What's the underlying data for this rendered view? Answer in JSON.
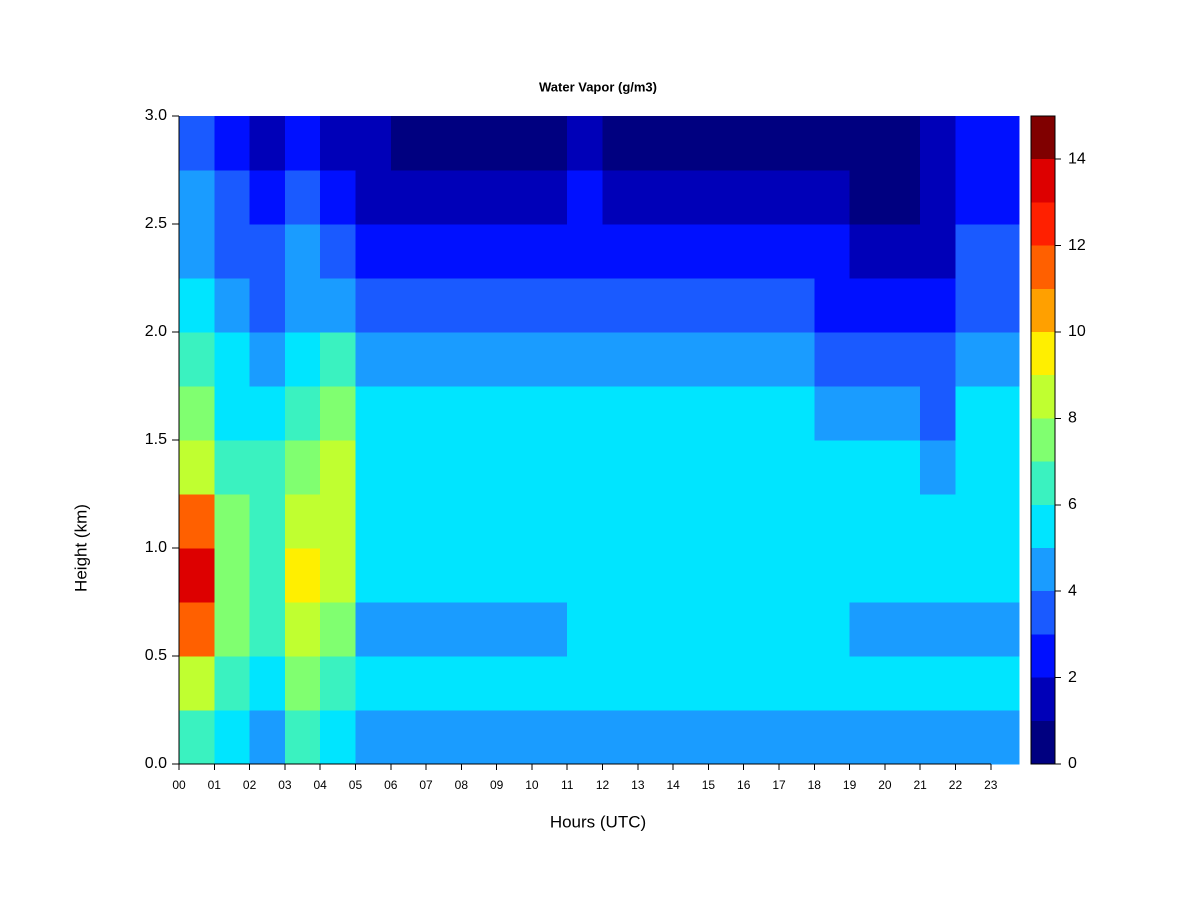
{
  "chart_data": {
    "type": "heatmap",
    "title": "Water Vapor (g/m3)",
    "x_label": "Hours (UTC)",
    "y_label": "Height (km)",
    "x": [
      0,
      1,
      2,
      3,
      4,
      5,
      6,
      7,
      8,
      9,
      10,
      11,
      12,
      13,
      14,
      15,
      16,
      17,
      18,
      19,
      20,
      21,
      22,
      23,
      23.8
    ],
    "y": [
      0,
      0.25,
      0.5,
      0.75,
      1,
      1.25,
      1.5,
      1.75,
      2,
      2.25,
      2.5,
      2.75,
      3
    ],
    "values": [
      [
        6.5,
        8,
        11,
        13.5,
        11,
        8,
        7,
        6.5,
        5,
        4.5,
        4,
        3.5
      ],
      [
        5.5,
        6,
        7,
        7.5,
        7,
        6,
        5.5,
        5,
        4,
        3.5,
        3,
        2.5
      ],
      [
        4.5,
        5.5,
        6,
        6.5,
        6.5,
        6,
        5.5,
        4.5,
        3.5,
        3,
        2.5,
        1.5
      ],
      [
        6.5,
        7,
        8,
        9,
        8,
        7,
        6,
        5.5,
        4.5,
        4,
        3.5,
        2.5
      ],
      [
        5.5,
        6.5,
        7,
        8,
        8,
        8,
        7,
        6,
        4,
        3,
        2,
        1.5
      ],
      [
        4.5,
        5.5,
        4.5,
        5.5,
        5.5,
        5.5,
        5.5,
        4.5,
        3.5,
        2.5,
        1.5,
        1
      ],
      [
        4.5,
        5.5,
        4.5,
        5.5,
        5.5,
        5.5,
        5.5,
        4.5,
        3.5,
        2.5,
        1.5,
        0.5
      ],
      [
        4.5,
        5.5,
        4.5,
        5.5,
        5.5,
        5.5,
        5.5,
        4.5,
        3.5,
        2.5,
        1.5,
        0.5
      ],
      [
        4.5,
        5.5,
        4.5,
        5.5,
        5.5,
        5.5,
        5.5,
        4.5,
        3.5,
        2.5,
        1.5,
        0.5
      ],
      [
        4.5,
        5.5,
        4.5,
        5.5,
        5.5,
        5.5,
        5.5,
        4.5,
        3.5,
        2.5,
        1.5,
        0.5
      ],
      [
        4.5,
        5.5,
        4.5,
        5.5,
        5.5,
        5.5,
        5.5,
        4.5,
        3.5,
        2.5,
        1.5,
        0.5
      ],
      [
        4.5,
        5.5,
        5.5,
        5.5,
        5.5,
        5.5,
        5.5,
        4.5,
        3.5,
        2.5,
        2.5,
        1.5
      ],
      [
        4.5,
        5.5,
        5.5,
        5.5,
        5.5,
        5.5,
        5.5,
        4.5,
        3.5,
        2.5,
        1.5,
        0.5
      ],
      [
        4.5,
        5.5,
        5.5,
        5.5,
        5.5,
        5.5,
        5.5,
        4.5,
        3.5,
        2.5,
        1.5,
        0.5
      ],
      [
        4.5,
        5.5,
        5.5,
        5.5,
        5.5,
        5.5,
        5.5,
        4.5,
        3.5,
        2.5,
        1.5,
        0.5
      ],
      [
        4.5,
        5.5,
        5.5,
        5.5,
        5.5,
        5.5,
        5.5,
        4.5,
        3.5,
        2.5,
        1.5,
        0.5
      ],
      [
        4.5,
        5.5,
        5.5,
        5.5,
        5.5,
        5.5,
        5.5,
        4.5,
        3.5,
        2.5,
        1.5,
        0.5
      ],
      [
        4.5,
        5.5,
        5.5,
        5.5,
        5.5,
        5.5,
        5.5,
        4.5,
        3.5,
        2.5,
        1.5,
        0.5
      ],
      [
        4.5,
        5.5,
        5.5,
        5.5,
        5.5,
        5.5,
        4.5,
        3.5,
        2.5,
        2.5,
        1.5,
        0.5
      ],
      [
        4.5,
        5.5,
        4.5,
        5.5,
        5.5,
        5.5,
        4.5,
        3.5,
        2.5,
        1.5,
        0.5,
        0.5
      ],
      [
        4.5,
        5.5,
        4.5,
        5.5,
        5.5,
        5.5,
        4.5,
        3.5,
        2.5,
        1.5,
        0.5,
        0.5
      ],
      [
        4.5,
        5.5,
        4.5,
        5.5,
        5.5,
        4.5,
        3.5,
        3.5,
        2.5,
        1.5,
        1.5,
        1.5
      ],
      [
        4.5,
        5.5,
        4.5,
        5.5,
        5.5,
        5.5,
        5.5,
        4.5,
        3.5,
        3.5,
        2.5,
        2.5
      ],
      [
        4.5,
        5.5,
        4.5,
        5.5,
        5.5,
        5.5,
        5.5,
        4.5,
        3.5,
        3.5,
        2.5,
        2.5
      ]
    ],
    "levels": [
      0,
      1,
      2,
      3,
      4,
      5,
      6,
      7,
      8,
      9,
      10,
      11,
      12,
      13,
      14,
      15
    ],
    "colors": [
      "#000080",
      "#0000b8",
      "#0010ff",
      "#1a5aff",
      "#1a9cff",
      "#00e5ff",
      "#3af2c0",
      "#80ff70",
      "#c0ff30",
      "#ffef00",
      "#ffa000",
      "#ff6000",
      "#ff2000",
      "#dd0000",
      "#800000"
    ],
    "xlim": [
      0,
      23.8
    ],
    "ylim": [
      0,
      3
    ],
    "xticks": [
      {
        "value": 0,
        "label": "00"
      },
      {
        "value": 1,
        "label": "01"
      },
      {
        "value": 2,
        "label": "02"
      },
      {
        "value": 3,
        "label": "03"
      },
      {
        "value": 4,
        "label": "04"
      },
      {
        "value": 5,
        "label": "05"
      },
      {
        "value": 6,
        "label": "06"
      },
      {
        "value": 7,
        "label": "07"
      },
      {
        "value": 8,
        "label": "08"
      },
      {
        "value": 9,
        "label": "09"
      },
      {
        "value": 10,
        "label": "10"
      },
      {
        "value": 11,
        "label": "11"
      },
      {
        "value": 12,
        "label": "12"
      },
      {
        "value": 13,
        "label": "13"
      },
      {
        "value": 14,
        "label": "14"
      },
      {
        "value": 15,
        "label": "15"
      },
      {
        "value": 16,
        "label": "16"
      },
      {
        "value": 17,
        "label": "17"
      },
      {
        "value": 18,
        "label": "18"
      },
      {
        "value": 19,
        "label": "19"
      },
      {
        "value": 20,
        "label": "20"
      },
      {
        "value": 21,
        "label": "21"
      },
      {
        "value": 22,
        "label": "22"
      },
      {
        "value": 23,
        "label": "23"
      }
    ],
    "yticks": [
      {
        "value": 0,
        "label": "0.0"
      },
      {
        "value": 0.5,
        "label": "0.5"
      },
      {
        "value": 1,
        "label": "1.0"
      },
      {
        "value": 1.5,
        "label": "1.5"
      },
      {
        "value": 2,
        "label": "2.0"
      },
      {
        "value": 2.5,
        "label": "2.5"
      },
      {
        "value": 3,
        "label": "3.0"
      }
    ],
    "colorbar_lim": [
      0,
      15
    ],
    "colorbar_ticks": [
      0,
      2,
      4,
      6,
      8,
      10,
      12,
      14
    ]
  }
}
